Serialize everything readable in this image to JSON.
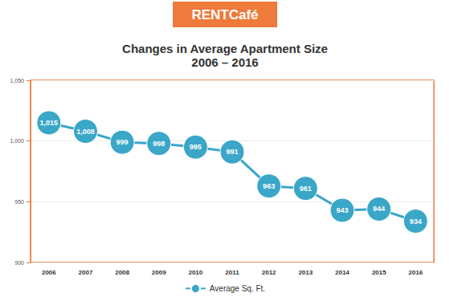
{
  "chart_data": {
    "type": "line",
    "logo": "RENTCafé",
    "title": "Changes in Average Apartment Size",
    "subtitle": "2006 – 2016",
    "categories": [
      "2006",
      "2007",
      "2008",
      "2009",
      "2010",
      "2011",
      "2012",
      "2013",
      "2014",
      "2015",
      "2016"
    ],
    "series": [
      {
        "name": "Average Sq. Ft.",
        "color": "#3aa6c8",
        "marker": "circle",
        "values": [
          1015,
          1008,
          999,
          998,
          995,
          991,
          963,
          961,
          943,
          944,
          934
        ],
        "value_labels": [
          "1,015",
          "1,008",
          "999",
          "998",
          "995",
          "991",
          "963",
          "961",
          "943",
          "944",
          "934"
        ]
      }
    ],
    "ylim": [
      900,
      1050
    ],
    "yticks": [
      900,
      950,
      {
        "value": 1000,
        "label": "1,000"
      },
      {
        "value": 1050,
        "label": "1,050"
      }
    ],
    "grid": true,
    "legend": "bottom",
    "data_labels": true
  }
}
